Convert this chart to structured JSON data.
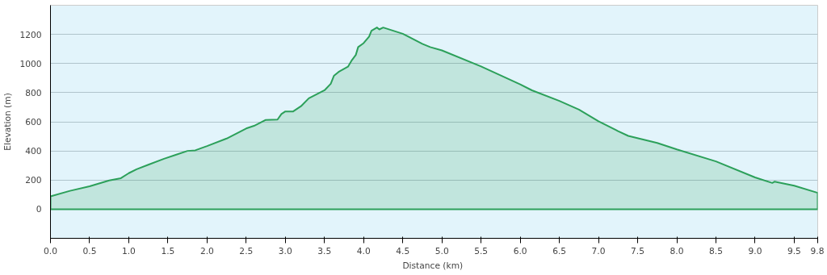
{
  "chart_data": {
    "type": "area",
    "xlabel": "Distance  (km)",
    "ylabel": "Elevation (m)",
    "x": [
      0,
      0.25,
      0.5,
      0.75,
      0.9,
      1.0,
      1.1,
      1.25,
      1.45,
      1.6,
      1.75,
      1.85,
      2.0,
      2.25,
      2.5,
      2.6,
      2.75,
      2.9,
      2.95,
      3.0,
      3.1,
      3.2,
      3.3,
      3.5,
      3.58,
      3.62,
      3.68,
      3.8,
      3.85,
      3.9,
      3.93,
      4.0,
      4.07,
      4.1,
      4.17,
      4.2,
      4.25,
      4.5,
      4.75,
      4.85,
      5.0,
      5.5,
      6.0,
      6.15,
      6.5,
      6.75,
      7.0,
      7.25,
      7.38,
      7.75,
      8.0,
      8.5,
      9.0,
      9.22,
      9.25,
      9.5,
      9.8
    ],
    "series": [
      {
        "color": "#2ca05a",
        "values": [
          88,
          126,
          157,
          197,
          213,
          247,
          274,
          305,
          346,
          373,
          400,
          404,
          433,
          485,
          554,
          572,
          613,
          615,
          653,
          671,
          671,
          707,
          761,
          816,
          861,
          915,
          942,
          978,
          1023,
          1059,
          1113,
          1140,
          1185,
          1225,
          1247,
          1234,
          1247,
          1204,
          1135,
          1113,
          1090,
          980,
          857,
          816,
          743,
          684,
          604,
          536,
          503,
          455,
          410,
          328,
          218,
          180,
          189,
          161,
          112
        ]
      }
    ],
    "xlim": [
      0,
      9.8
    ],
    "xticks": [
      {
        "value": 0,
        "label": "0.0"
      },
      {
        "value": 0.5,
        "label": "0.5"
      },
      {
        "value": 1,
        "label": "1.0"
      },
      {
        "value": 1.5,
        "label": "1.5"
      },
      {
        "value": 2,
        "label": "2.0"
      },
      {
        "value": 2.5,
        "label": "2.5"
      },
      {
        "value": 3,
        "label": "3.0"
      },
      {
        "value": 3.5,
        "label": "3.5"
      },
      {
        "value": 4,
        "label": "4.0"
      },
      {
        "value": 4.5,
        "label": "4.5"
      },
      {
        "value": 5,
        "label": "5.0"
      },
      {
        "value": 5.5,
        "label": "5.5"
      },
      {
        "value": 6,
        "label": "6.0"
      },
      {
        "value": 6.5,
        "label": "6.5"
      },
      {
        "value": 7,
        "label": "7.0"
      },
      {
        "value": 7.5,
        "label": "7.5"
      },
      {
        "value": 8,
        "label": "8.0"
      },
      {
        "value": 8.5,
        "label": "8.5"
      },
      {
        "value": 9,
        "label": "9.0"
      },
      {
        "value": 9.5,
        "label": "9.5"
      },
      {
        "value": 9.8,
        "label": "9.8"
      }
    ],
    "ylim": [
      -200,
      1400
    ],
    "yticks": [
      0,
      200,
      400,
      600,
      800,
      1000,
      1200
    ],
    "grid": "y",
    "marker": "none",
    "line_style": "solid"
  }
}
